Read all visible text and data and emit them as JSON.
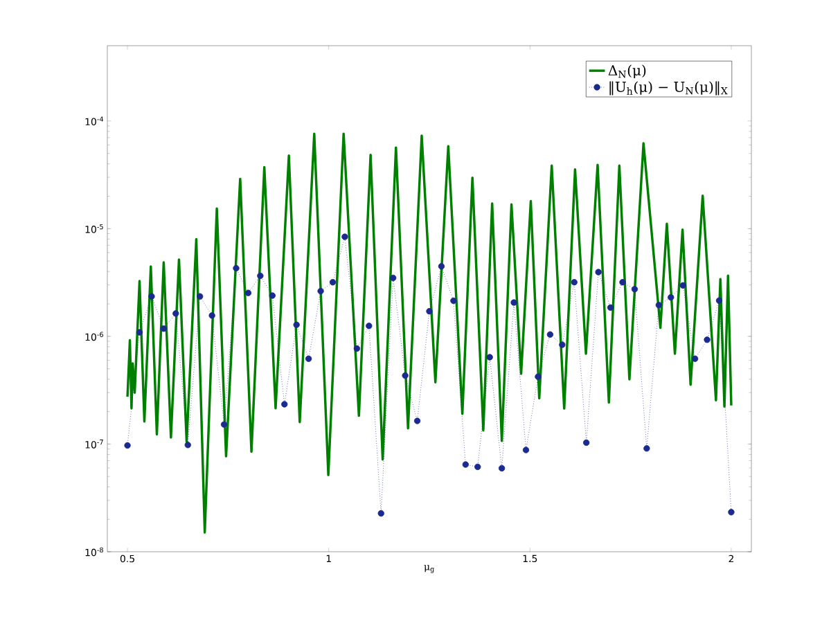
{
  "chart_data": {
    "type": "line",
    "xlabel": "μ$_{g}$",
    "xlim": [
      0.45,
      2.05
    ],
    "xticks": [
      0.5,
      1,
      1.5,
      2
    ],
    "ylim": [
      1e-08,
      0.0005
    ],
    "yticks": [
      {
        "value": 1e-08,
        "label": "10$^{-8}$"
      },
      {
        "value": 1e-07,
        "label": "10$^{-7}$"
      },
      {
        "value": 1e-06,
        "label": "10$^{-6}$"
      },
      {
        "value": 1e-05,
        "label": "10$^{-5}$"
      },
      {
        "value": 0.0001,
        "label": "10$^{-4}$"
      }
    ],
    "log": "y",
    "legend": "top right",
    "series": [
      {
        "name": "Δ$_{N}$(μ)",
        "color": "#008000",
        "marker": "none",
        "line_style": "solid",
        "x": [
          0.5,
          0.506,
          0.51,
          0.513,
          0.518,
          0.53,
          0.542,
          0.558,
          0.573,
          0.59,
          0.608,
          0.628,
          0.647,
          0.671,
          0.692,
          0.722,
          0.745,
          0.78,
          0.808,
          0.84,
          0.868,
          0.901,
          0.928,
          0.964,
          0.999,
          1.037,
          1.075,
          1.104,
          1.134,
          1.167,
          1.197,
          1.231,
          1.265,
          1.297,
          1.332,
          1.357,
          1.384,
          1.406,
          1.43,
          1.454,
          1.478,
          1.502,
          1.523,
          1.554,
          1.585,
          1.612,
          1.639,
          1.668,
          1.696,
          1.722,
          1.747,
          1.782,
          1.824,
          1.84,
          1.86,
          1.879,
          1.899,
          1.929,
          1.962,
          1.973,
          1.983,
          1.992,
          2.0
        ],
        "values": [
          2.75e-07,
          9.2e-07,
          2.15e-07,
          5.6e-07,
          3e-07,
          3.26e-06,
          1.62e-07,
          4.45e-06,
          1.23e-07,
          4.86e-06,
          1.15e-07,
          5.17e-06,
          1.05e-07,
          7.98e-06,
          1.51e-08,
          1.54e-05,
          7.7e-08,
          2.9e-05,
          8.5e-08,
          3.72e-05,
          2.15e-07,
          4.77e-05,
          1.6e-07,
          7.6e-05,
          5.15e-08,
          7.6e-05,
          1.83e-07,
          4.84e-05,
          7.2e-08,
          5.66e-05,
          1.4e-07,
          7.3e-05,
          3.75e-07,
          5.83e-05,
          1.91e-07,
          2.97e-05,
          1.34e-07,
          1.71e-05,
          1.07e-07,
          1.68e-05,
          4.5e-07,
          1.8e-05,
          2.66e-07,
          3.85e-05,
          2.14e-07,
          3.55e-05,
          6.9e-07,
          3.91e-05,
          2.43e-07,
          3.85e-05,
          3.99e-07,
          6.2e-05,
          1.2e-06,
          1.11e-05,
          6.9e-07,
          9.8e-06,
          3.56e-07,
          2.02e-05,
          2.55e-07,
          3.4e-06,
          2.23e-07,
          3.66e-06,
          2.28e-07
        ]
      },
      {
        "name": "‖U$_{h}$(μ) − U$_{N}$(μ)‖$_{X}$",
        "color": "#1a2a8f",
        "marker": "circle",
        "line_style": "dotted",
        "x": [
          0.5,
          0.53,
          0.56,
          0.59,
          0.62,
          0.65,
          0.68,
          0.71,
          0.74,
          0.77,
          0.8,
          0.83,
          0.86,
          0.89,
          0.92,
          0.95,
          0.98,
          1.01,
          1.04,
          1.07,
          1.1,
          1.13,
          1.16,
          1.19,
          1.22,
          1.25,
          1.28,
          1.31,
          1.34,
          1.37,
          1.4,
          1.43,
          1.46,
          1.49,
          1.52,
          1.55,
          1.58,
          1.61,
          1.64,
          1.67,
          1.7,
          1.73,
          1.76,
          1.79,
          1.82,
          1.85,
          1.88,
          1.91,
          1.94,
          1.97,
          2.0
        ],
        "values": [
          9.7e-08,
          1.09e-06,
          2.35e-06,
          1.18e-06,
          1.63e-06,
          9.8e-08,
          2.35e-06,
          1.56e-06,
          1.52e-07,
          4.29e-06,
          2.53e-06,
          3.65e-06,
          2.39e-06,
          2.34e-07,
          1.28e-06,
          6.2e-07,
          2.63e-06,
          3.18e-06,
          8.4e-06,
          7.7e-07,
          1.25e-06,
          2.27e-08,
          3.49e-06,
          4.32e-07,
          1.64e-07,
          1.71e-06,
          4.47e-06,
          2.14e-06,
          6.45e-08,
          6.14e-08,
          6.4e-07,
          5.96e-08,
          2.06e-06,
          8.8e-08,
          4.22e-07,
          1.04e-06,
          8.35e-07,
          3.18e-06,
          1.03e-07,
          3.95e-06,
          1.85e-06,
          3.18e-06,
          2.74e-06,
          9.1e-08,
          1.95e-06,
          2.3e-06,
          2.97e-06,
          6.2e-07,
          9.3e-07,
          2.15e-06,
          2.33e-08
        ]
      }
    ]
  }
}
